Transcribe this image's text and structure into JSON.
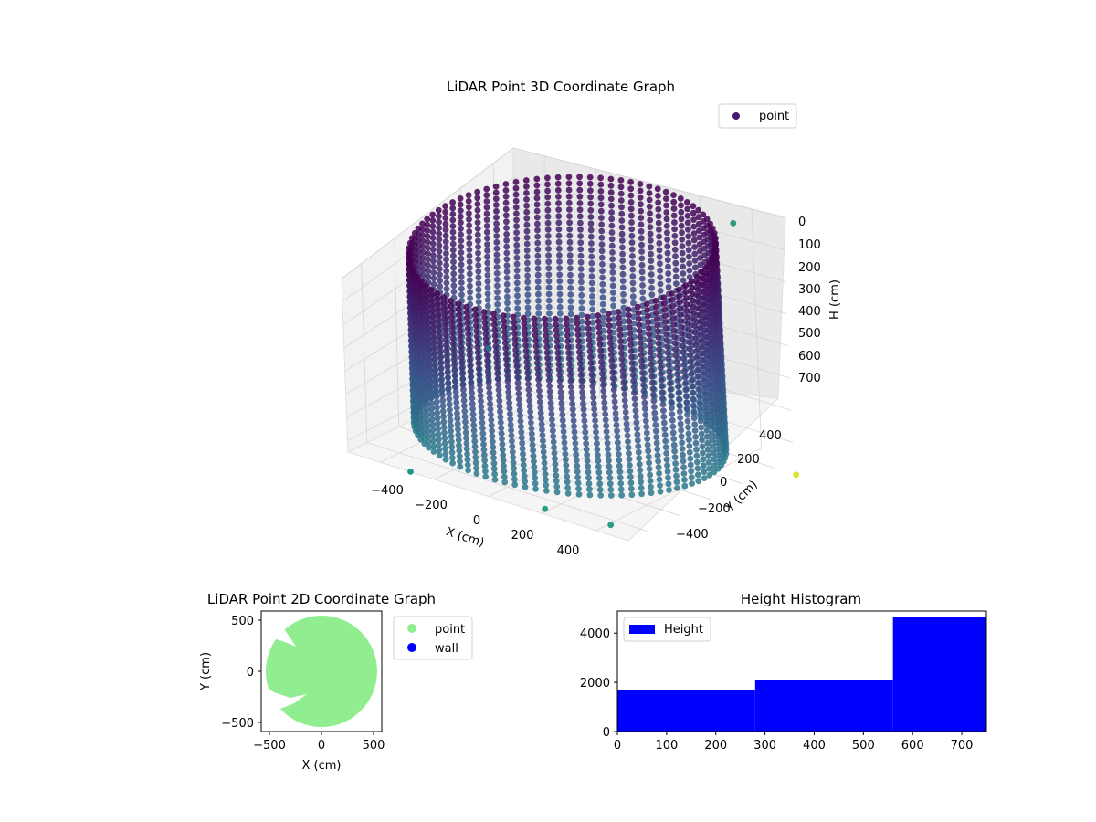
{
  "charts": {
    "scatter3d": {
      "type": "scatter",
      "title": "LiDAR Point 3D Coordinate Graph",
      "xlabel": "X (cm)",
      "ylabel": "Y (cm)",
      "zlabel": "H (cm)",
      "x_ticks": [
        "−400",
        "−200",
        "0",
        "200",
        "400"
      ],
      "y_ticks": [
        "−400",
        "−200",
        "0",
        "200",
        "400"
      ],
      "z_ticks": [
        "0",
        "100",
        "200",
        "300",
        "400",
        "500",
        "600",
        "700"
      ],
      "legend": {
        "label": "point",
        "color": "#46176a",
        "placement": "top-right"
      },
      "colormap": [
        "#440154",
        "#3b528b",
        "#21918c",
        "#5ec962",
        "#fde725"
      ],
      "z_inverted": true,
      "description": "cylindrical wall of points, radius ~500 cm, height 0-700 cm"
    },
    "scatter2d": {
      "type": "scatter",
      "title": "LiDAR Point 2D Coordinate Graph",
      "xlabel": "X (cm)",
      "ylabel": "Y (cm)",
      "xlim": [
        -580,
        580
      ],
      "ylim": [
        -580,
        580
      ],
      "x_ticks": [
        "−500",
        "0",
        "500"
      ],
      "y_ticks": [
        "500",
        "0",
        "−500"
      ],
      "legend": [
        {
          "label": "point",
          "color": "#90ee90"
        },
        {
          "label": "wall",
          "color": "#0000ff"
        }
      ]
    },
    "histogram": {
      "type": "bar",
      "title": "Height Histogram",
      "bins": [
        {
          "start": 0,
          "end": 280,
          "count": 1700
        },
        {
          "start": 280,
          "end": 560,
          "count": 2100
        },
        {
          "start": 560,
          "end": 750,
          "count": 4650
        }
      ],
      "xlim": [
        0,
        750
      ],
      "ylim": [
        0,
        4900
      ],
      "x_ticks": [
        "0",
        "100",
        "200",
        "300",
        "400",
        "500",
        "600",
        "700"
      ],
      "y_ticks": [
        "0",
        "2000",
        "4000"
      ],
      "legend": {
        "label": "Height",
        "color": "#0000ff",
        "placement": "top-left"
      }
    }
  }
}
